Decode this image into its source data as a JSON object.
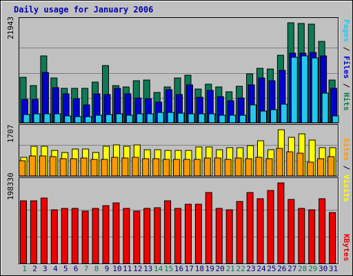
{
  "chart_data": {
    "type": "bar",
    "title": "Daily usage for January 2006",
    "colors": {
      "hits": "#0d7a55",
      "files": "#0000d0",
      "pages": "#22c8ee",
      "visits": "#ffff00",
      "sites": "#ff9900",
      "kbytes": "#ee0000",
      "weekend": "#00805a",
      "weekday": "#000080",
      "background": "#c0c0c0",
      "panel": "#c0c0c0"
    },
    "categories": [
      "1",
      "2",
      "3",
      "4",
      "5",
      "6",
      "7",
      "8",
      "9",
      "10",
      "11",
      "12",
      "13",
      "14",
      "15",
      "16",
      "17",
      "18",
      "19",
      "20",
      "21",
      "22",
      "23",
      "24",
      "25",
      "26",
      "27",
      "28",
      "29",
      "30",
      "31"
    ],
    "weekend_days": [
      "1",
      "7",
      "8",
      "14",
      "15",
      "21",
      "22",
      "28",
      "29"
    ],
    "panels": [
      {
        "id": "requests",
        "max_label": "21943",
        "ymax": 21943,
        "right_label": [
          {
            "text": "Pages",
            "color": "#22c8ee"
          },
          {
            "text": " / ",
            "color": "#000000"
          },
          {
            "text": "Files",
            "color": "#0000d0"
          },
          {
            "text": " / ",
            "color": "#000000"
          },
          {
            "text": "Hits",
            "color": "#0d7a55"
          }
        ],
        "series": [
          {
            "name": "Hits",
            "color": "#0d7a55",
            "values": [
              10000,
              8200,
              14700,
              9800,
              7600,
              7500,
              7500,
              8900,
              12500,
              8100,
              7900,
              9300,
              9400,
              6600,
              7900,
              9800,
              10500,
              7400,
              8400,
              7900,
              6800,
              8000,
              10700,
              11900,
              11800,
              14800,
              21900,
              21800,
              21600,
              17800,
              9400
            ]
          },
          {
            "name": "Files",
            "color": "#0000d0",
            "values": [
              5200,
              5100,
              11100,
              7700,
              6400,
              5300,
              3900,
              6400,
              6200,
              7600,
              6300,
              5400,
              5300,
              4500,
              7300,
              6200,
              8300,
              5600,
              7100,
              5800,
              4800,
              5400,
              8300,
              9800,
              9200,
              11500,
              15300,
              15300,
              15500,
              14700,
              7600
            ]
          },
          {
            "name": "Pages",
            "color": "#22c8ee",
            "values": [
              1800,
              1900,
              2000,
              2000,
              1500,
              1400,
              1400,
              1600,
              1800,
              1900,
              1700,
              2000,
              2000,
              2300,
              2200,
              2100,
              1900,
              2000,
              2000,
              1700,
              1700,
              1700,
              4000,
              2600,
              2800,
              4100,
              14400,
              14700,
              14300,
              6500,
              1500
            ]
          }
        ]
      },
      {
        "id": "visits",
        "max_label": "1707",
        "ymax": 1707,
        "right_label": [
          {
            "text": "Sites",
            "color": "#ff9900"
          },
          {
            "text": " / ",
            "color": "#000000"
          },
          {
            "text": "Visits",
            "color": "#ffff00"
          }
        ],
        "series": [
          {
            "name": "Visits",
            "color": "#ffff00",
            "values": [
              680,
              1100,
              1100,
              950,
              860,
              1000,
              1000,
              860,
              1100,
              1150,
              1100,
              1150,
              960,
              960,
              950,
              950,
              950,
              1080,
              1080,
              960,
              1050,
              1050,
              1110,
              1300,
              960,
              1700,
              1430,
              1550,
              1330,
              1050,
              1050
            ]
          },
          {
            "name": "Sites",
            "color": "#ff9900",
            "values": [
              560,
              730,
              730,
              720,
              630,
              640,
              650,
              620,
              610,
              690,
              670,
              690,
              640,
              630,
              610,
              600,
              620,
              610,
              670,
              660,
              610,
              660,
              640,
              700,
              640,
              1020,
              880,
              840,
              520,
              630,
              710
            ]
          }
        ]
      },
      {
        "id": "kbytes",
        "max_label": "198330",
        "ymax": 198330,
        "right_label": [
          {
            "text": "KBytes",
            "color": "#ee0000"
          }
        ],
        "series": [
          {
            "name": "KBytes",
            "color": "#ee0000",
            "values": [
              155000,
              155000,
              161000,
              132000,
              135000,
              136000,
              128000,
              135000,
              143000,
              150000,
              136000,
              129000,
              136000,
              137000,
              155000,
              136000,
              146000,
              145000,
              174000,
              136000,
              132000,
              152000,
              174000,
              160000,
              180000,
              198000,
              157000,
              136000,
              132000,
              160000,
              125000
            ]
          }
        ]
      }
    ]
  }
}
